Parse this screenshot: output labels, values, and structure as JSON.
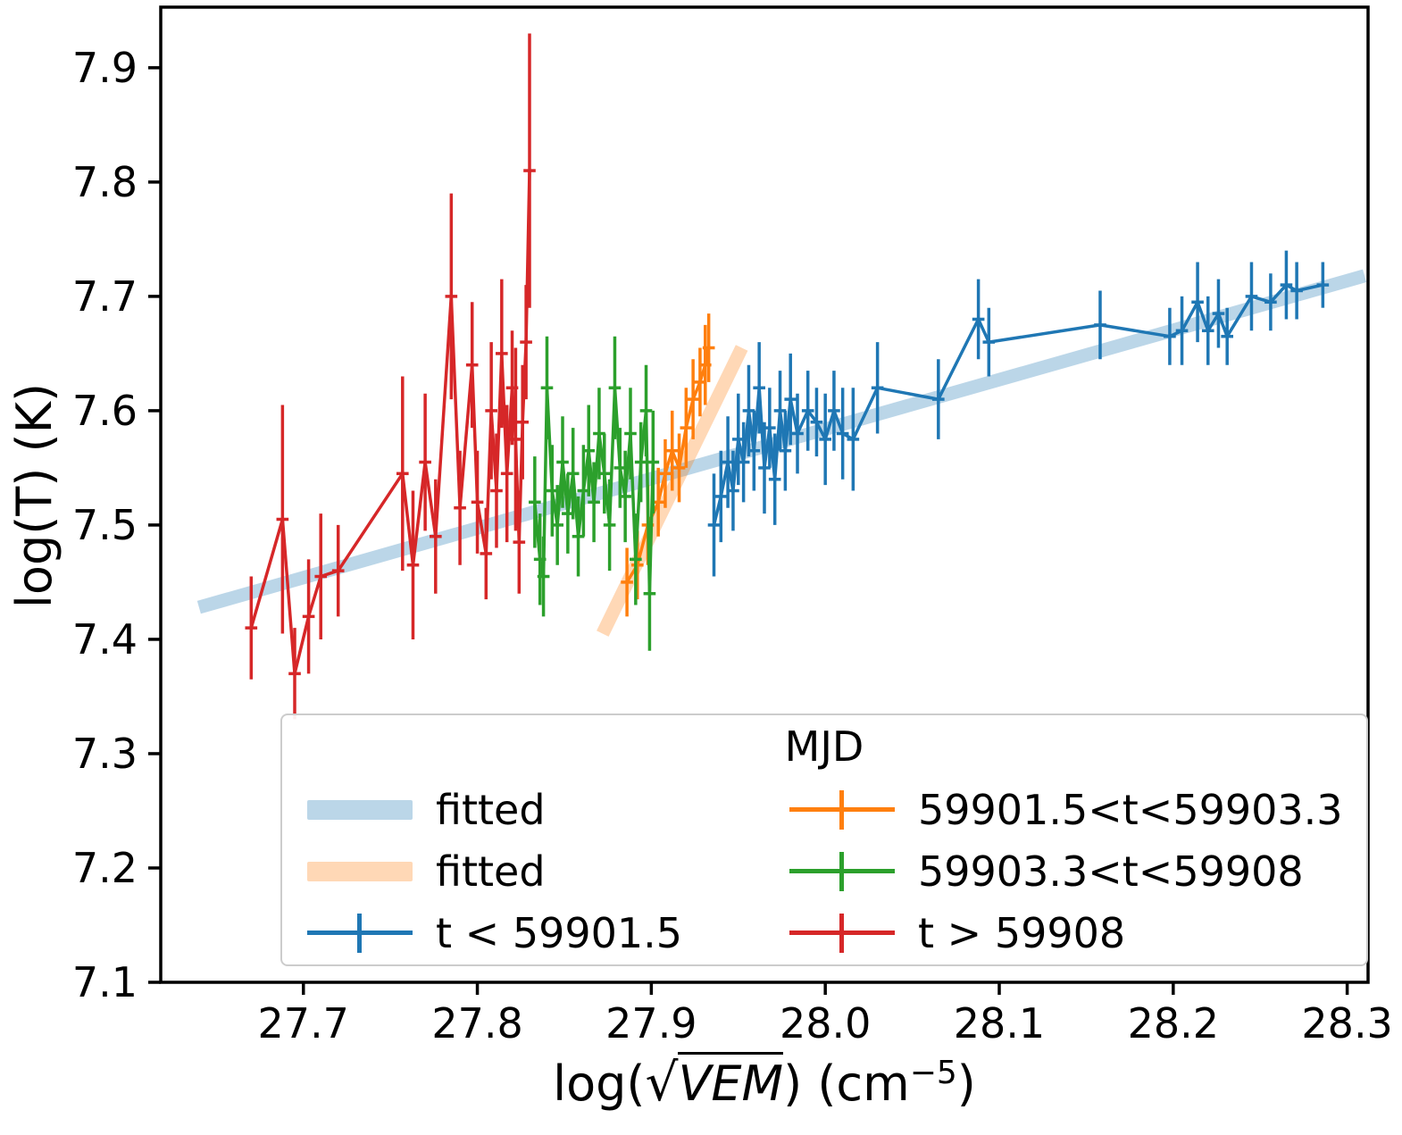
{
  "figure": {
    "ylabel": "log(T) (K)",
    "xlabel": {
      "prefix": "log(",
      "radical": "√",
      "arg": "VEM",
      "suffix": ") (cm",
      "exp": "−5",
      "close": ")"
    }
  },
  "legend": {
    "title": "MJD",
    "items": [
      {
        "label": "fitted",
        "type": "band",
        "color": "rgba(31,119,180,0.3)"
      },
      {
        "label": "fitted",
        "type": "band",
        "color": "rgba(255,127,14,0.3)"
      },
      {
        "label": "t < 59901.5",
        "type": "errorbar",
        "color": "#1f77b4"
      },
      {
        "label": "59901.5<t<59903.3",
        "type": "errorbar",
        "color": "#ff7f0e"
      },
      {
        "label": "59903.3<t<59908",
        "type": "errorbar",
        "color": "#2ca02c"
      },
      {
        "label": "t > 59908",
        "type": "errorbar",
        "color": "#d62728"
      }
    ]
  },
  "chart_data": {
    "type": "line",
    "title": "",
    "xlabel": "log(sqrt(VEM)) (cm^-5)",
    "ylabel": "log(T) (K)",
    "xlim": [
      27.618,
      28.312
    ],
    "ylim": [
      7.1,
      7.953
    ],
    "xticks": [
      27.7,
      27.8,
      27.9,
      28.0,
      28.1,
      28.2,
      28.3
    ],
    "yticks": [
      7.1,
      7.2,
      7.3,
      7.4,
      7.5,
      7.6,
      7.7,
      7.8,
      7.9
    ],
    "grid": false,
    "legend_position": "lower right",
    "fits": [
      {
        "name": "fitted",
        "color": "rgba(31,119,180,0.3)",
        "x": [
          27.64,
          28.31
        ],
        "y": [
          7.428,
          7.718
        ],
        "width": 15
      },
      {
        "name": "fitted",
        "color": "rgba(255,127,14,0.3)",
        "x": [
          27.872,
          27.952
        ],
        "y": [
          7.405,
          7.655
        ],
        "width": 15
      }
    ],
    "series": [
      {
        "name": "t < 59901.5",
        "color": "#1f77b4",
        "xerr": 0.0035,
        "points": [
          [
            27.936,
            7.5,
            0.045
          ],
          [
            27.94,
            7.525,
            0.04
          ],
          [
            27.944,
            7.555,
            0.04
          ],
          [
            27.947,
            7.53,
            0.035
          ],
          [
            27.95,
            7.575,
            0.04
          ],
          [
            27.953,
            7.555,
            0.035
          ],
          [
            27.956,
            7.6,
            0.04
          ],
          [
            27.959,
            7.565,
            0.035
          ],
          [
            27.962,
            7.62,
            0.04
          ],
          [
            27.965,
            7.55,
            0.04
          ],
          [
            27.968,
            7.585,
            0.035
          ],
          [
            27.971,
            7.54,
            0.04
          ],
          [
            27.974,
            7.6,
            0.035
          ],
          [
            27.977,
            7.565,
            0.035
          ],
          [
            27.98,
            7.61,
            0.04
          ],
          [
            27.984,
            7.58,
            0.035
          ],
          [
            27.99,
            7.6,
            0.035
          ],
          [
            27.995,
            7.59,
            0.03
          ],
          [
            28.0,
            7.575,
            0.04
          ],
          [
            28.005,
            7.6,
            0.035
          ],
          [
            28.01,
            7.58,
            0.04
          ],
          [
            28.016,
            7.575,
            0.045
          ],
          [
            28.03,
            7.62,
            0.04
          ],
          [
            28.065,
            7.61,
            0.035
          ],
          [
            28.088,
            7.68,
            0.035
          ],
          [
            28.094,
            7.66,
            0.03
          ],
          [
            28.158,
            7.675,
            0.03
          ],
          [
            28.198,
            7.665,
            0.025
          ],
          [
            28.205,
            7.67,
            0.03
          ],
          [
            28.214,
            7.695,
            0.035
          ],
          [
            28.22,
            7.67,
            0.03
          ],
          [
            28.226,
            7.685,
            0.03
          ],
          [
            28.231,
            7.665,
            0.025
          ],
          [
            28.245,
            7.7,
            0.03
          ],
          [
            28.256,
            7.695,
            0.025
          ],
          [
            28.265,
            7.71,
            0.03
          ],
          [
            28.271,
            7.705,
            0.025
          ],
          [
            28.286,
            7.71,
            0.02
          ]
        ]
      },
      {
        "name": "59901.5<t<59903.3",
        "color": "#ff7f0e",
        "xerr": 0.0035,
        "points": [
          [
            27.886,
            7.45,
            0.03
          ],
          [
            27.892,
            7.465,
            0.03
          ],
          [
            27.898,
            7.5,
            0.035
          ],
          [
            27.904,
            7.52,
            0.03
          ],
          [
            27.908,
            7.545,
            0.03
          ],
          [
            27.912,
            7.565,
            0.035
          ],
          [
            27.916,
            7.55,
            0.03
          ],
          [
            27.92,
            7.585,
            0.035
          ],
          [
            27.924,
            7.61,
            0.035
          ],
          [
            27.928,
            7.625,
            0.03
          ],
          [
            27.931,
            7.64,
            0.035
          ],
          [
            27.933,
            7.655,
            0.03
          ]
        ]
      },
      {
        "name": "59903.3<t<59908",
        "color": "#2ca02c",
        "xerr": 0.0035,
        "points": [
          [
            27.833,
            7.52,
            0.04
          ],
          [
            27.836,
            7.47,
            0.04
          ],
          [
            27.838,
            7.455,
            0.035
          ],
          [
            27.84,
            7.62,
            0.045
          ],
          [
            27.843,
            7.53,
            0.04
          ],
          [
            27.846,
            7.5,
            0.035
          ],
          [
            27.849,
            7.555,
            0.04
          ],
          [
            27.852,
            7.51,
            0.035
          ],
          [
            27.855,
            7.545,
            0.04
          ],
          [
            27.858,
            7.49,
            0.035
          ],
          [
            27.861,
            7.53,
            0.04
          ],
          [
            27.864,
            7.565,
            0.04
          ],
          [
            27.867,
            7.52,
            0.035
          ],
          [
            27.87,
            7.58,
            0.04
          ],
          [
            27.873,
            7.545,
            0.035
          ],
          [
            27.876,
            7.5,
            0.04
          ],
          [
            27.879,
            7.62,
            0.045
          ],
          [
            27.882,
            7.55,
            0.035
          ],
          [
            27.885,
            7.525,
            0.04
          ],
          [
            27.888,
            7.58,
            0.04
          ],
          [
            27.891,
            7.47,
            0.04
          ],
          [
            27.894,
            7.555,
            0.035
          ],
          [
            27.897,
            7.6,
            0.04
          ],
          [
            27.899,
            7.44,
            0.05
          ],
          [
            27.901,
            7.555,
            0.045
          ]
        ]
      },
      {
        "name": "t > 59908",
        "color": "#d62728",
        "xerr": 0.0035,
        "points": [
          [
            27.67,
            7.41,
            0.045
          ],
          [
            27.688,
            7.505,
            0.1
          ],
          [
            27.695,
            7.37,
            0.04
          ],
          [
            27.703,
            7.42,
            0.05
          ],
          [
            27.71,
            7.455,
            0.055
          ],
          [
            27.72,
            7.46,
            0.04
          ],
          [
            27.757,
            7.545,
            0.085
          ],
          [
            27.763,
            7.465,
            0.065
          ],
          [
            27.77,
            7.555,
            0.06
          ],
          [
            27.776,
            7.49,
            0.05
          ],
          [
            27.785,
            7.7,
            0.09
          ],
          [
            27.79,
            7.515,
            0.05
          ],
          [
            27.797,
            7.64,
            0.055
          ],
          [
            27.8,
            7.52,
            0.045
          ],
          [
            27.805,
            7.475,
            0.04
          ],
          [
            27.808,
            7.6,
            0.06
          ],
          [
            27.811,
            7.53,
            0.05
          ],
          [
            27.814,
            7.65,
            0.065
          ],
          [
            27.817,
            7.545,
            0.06
          ],
          [
            27.82,
            7.62,
            0.05
          ],
          [
            27.822,
            7.575,
            0.08
          ],
          [
            27.824,
            7.485,
            0.045
          ],
          [
            27.826,
            7.59,
            0.05
          ],
          [
            27.828,
            7.66,
            0.05
          ],
          [
            27.83,
            7.81,
            0.12
          ]
        ]
      }
    ]
  }
}
